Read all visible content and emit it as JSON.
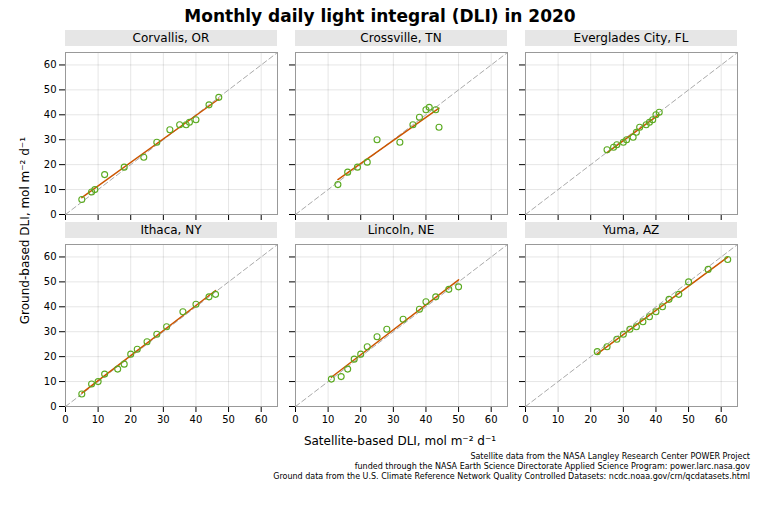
{
  "chart_data": {
    "type": "scatter",
    "title": "Monthly daily light integral (DLI) in 2020",
    "xlabel": "Satellite-based DLI, mol m⁻² d⁻¹",
    "ylabel": "Ground-based DLI, mol m⁻² d⁻¹",
    "annotations": [
      "Satellite data from the NASA Langley Research Center POWER Project",
      "funded through the NASA Earth Science Directorate Applied Science Program: power.larc.nasa.gov",
      "Ground data from the U.S. Climate Reference Network Quality Controlled Datasets: ncdc.noaa.gov/crn/qcdatasets.html"
    ],
    "grid": true,
    "color": "#5aaa20",
    "marker": "circle",
    "regression": {
      "type": "line",
      "color": "#cc5500",
      "line_style": "solid"
    },
    "diagonal": {
      "type": "line",
      "color": "#aaaaaa",
      "line_style": "dashed"
    },
    "panels": [
      {
        "title": "Corvallis, OR",
        "tick_labels": "y",
        "x": [
          5,
          8,
          9,
          12,
          18,
          24,
          28,
          32,
          35,
          37,
          38,
          40,
          44,
          47
        ],
        "values": [
          6,
          9,
          10,
          16,
          19,
          23,
          29,
          34,
          36,
          36,
          37,
          38,
          44,
          47
        ],
        "xlim": [
          0,
          65
        ],
        "ylim": [
          0,
          65
        ],
        "xticks": [
          0,
          10,
          20,
          30,
          40,
          50,
          60
        ],
        "yticks": [
          0,
          10,
          20,
          30,
          40,
          50,
          60
        ]
      },
      {
        "title": "Crossville, TN",
        "tick_labels": false,
        "x": [
          13,
          16,
          19,
          22,
          25,
          32,
          36,
          38,
          40,
          41,
          43,
          44
        ],
        "values": [
          12,
          17,
          19,
          21,
          30,
          29,
          36,
          39,
          42,
          43,
          42,
          35
        ],
        "xlim": [
          0,
          65
        ],
        "ylim": [
          0,
          65
        ],
        "xticks": [
          0,
          10,
          20,
          30,
          40,
          50,
          60
        ],
        "yticks": [
          0,
          10,
          20,
          30,
          40,
          50,
          60
        ]
      },
      {
        "title": "Everglades City, FL",
        "tick_labels": false,
        "x": [
          25,
          27,
          28,
          30,
          31,
          33,
          34,
          35,
          37,
          38,
          39,
          40,
          41
        ],
        "values": [
          26,
          27,
          28,
          29,
          30,
          31,
          33,
          35,
          36,
          37,
          38,
          40,
          41
        ],
        "xlim": [
          0,
          65
        ],
        "ylim": [
          0,
          65
        ],
        "xticks": [
          0,
          10,
          20,
          30,
          40,
          50,
          60
        ],
        "yticks": [
          0,
          10,
          20,
          30,
          40,
          50,
          60
        ]
      },
      {
        "title": "Ithaca, NY",
        "tick_labels": true,
        "x": [
          5,
          8,
          10,
          12,
          16,
          18,
          20,
          22,
          25,
          28,
          31,
          36,
          40,
          44,
          46
        ],
        "values": [
          5,
          9,
          10,
          13,
          15,
          17,
          21,
          23,
          26,
          29,
          32,
          38,
          41,
          44,
          45
        ],
        "xlim": [
          0,
          65
        ],
        "ylim": [
          0,
          65
        ],
        "xticks": [
          0,
          10,
          20,
          30,
          40,
          50,
          60
        ],
        "yticks": [
          0,
          10,
          20,
          30,
          40,
          50,
          60
        ]
      },
      {
        "title": "Lincoln, NE",
        "tick_labels": "x",
        "x": [
          11,
          14,
          16,
          18,
          20,
          22,
          25,
          28,
          33,
          38,
          40,
          43,
          47,
          50
        ],
        "values": [
          11,
          12,
          15,
          19,
          21,
          24,
          28,
          31,
          35,
          39,
          42,
          44,
          47,
          48
        ],
        "xlim": [
          0,
          65
        ],
        "ylim": [
          0,
          65
        ],
        "xticks": [
          0,
          10,
          20,
          30,
          40,
          50,
          60
        ],
        "yticks": [
          0,
          10,
          20,
          30,
          40,
          50,
          60
        ]
      },
      {
        "title": "Yuma, AZ",
        "tick_labels": "x",
        "x": [
          22,
          25,
          28,
          30,
          32,
          34,
          36,
          38,
          40,
          42,
          44,
          47,
          50,
          56,
          62
        ],
        "values": [
          22,
          24,
          27,
          29,
          31,
          32,
          34,
          36,
          38,
          40,
          43,
          45,
          50,
          55,
          59
        ],
        "xlim": [
          0,
          65
        ],
        "ylim": [
          0,
          65
        ],
        "xticks": [
          0,
          10,
          20,
          30,
          40,
          50,
          60
        ],
        "yticks": [
          0,
          10,
          20,
          30,
          40,
          50,
          60
        ]
      }
    ]
  }
}
